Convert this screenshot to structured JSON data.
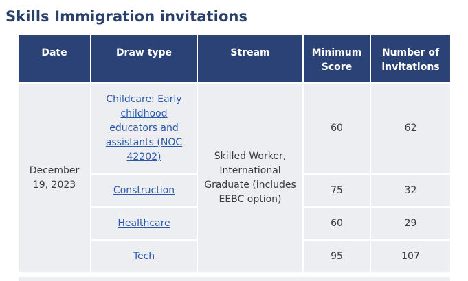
{
  "page": {
    "title": "Skills Immigration invitations"
  },
  "table": {
    "headers": {
      "date": "Date",
      "draw_type": "Draw type",
      "stream": "Stream",
      "min_score": "Minimum Score",
      "invitations": "Number of invitations"
    },
    "date": "December 19, 2023",
    "stream": "Skilled Worker, International Graduate (includes EEBC option)",
    "rows": [
      {
        "draw_type": "Childcare: Early childhood educators and assistants (NOC 42202)",
        "min_score": "60",
        "invitations": "62"
      },
      {
        "draw_type": "Construction",
        "min_score": "75",
        "invitations": "32"
      },
      {
        "draw_type": "Healthcare",
        "min_score": "60",
        "invitations": "29"
      },
      {
        "draw_type": "Tech",
        "min_score": "95",
        "invitations": "107"
      }
    ]
  }
}
